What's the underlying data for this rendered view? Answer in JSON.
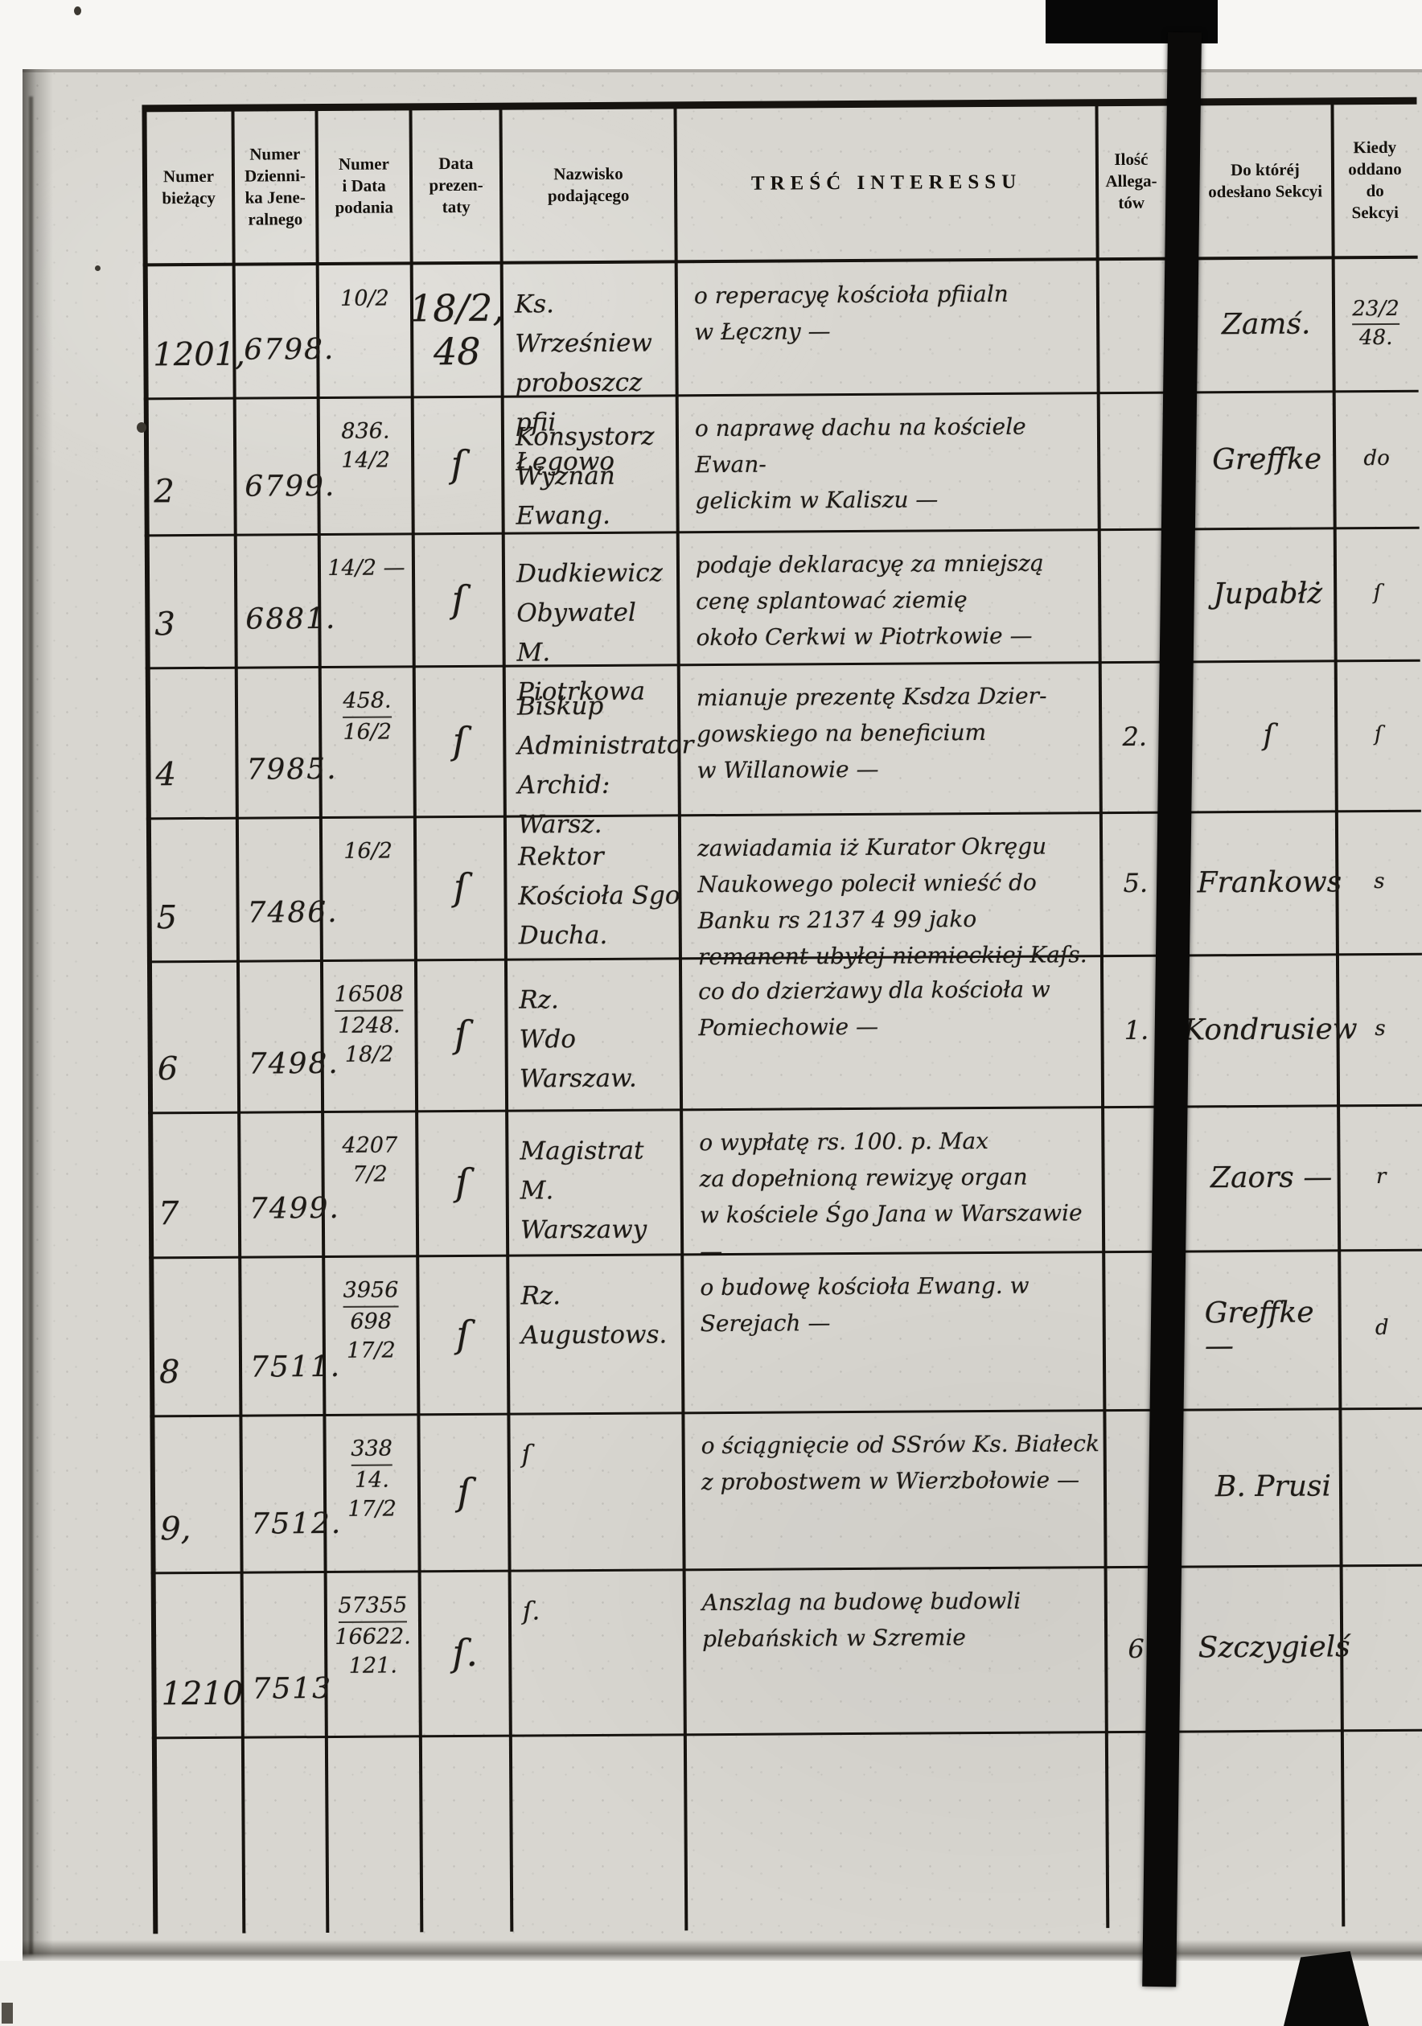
{
  "document": {
    "type": "archival-register-scan",
    "language": "Polish",
    "ink_color": "#1d1a16",
    "paper_color": "#d8d6d0"
  },
  "header": {
    "columns": [
      {
        "id": "num",
        "lines": [
          "Numer",
          "bieżący"
        ]
      },
      {
        "id": "dziennik",
        "lines": [
          "Numer",
          "Dzienni-",
          "ka Jene-",
          "ralnego"
        ]
      },
      {
        "id": "numdata",
        "lines": [
          "Numer",
          "i Data",
          "podania"
        ]
      },
      {
        "id": "prezentata",
        "lines": [
          "Data",
          "prezen-",
          "taty"
        ]
      },
      {
        "id": "nazwisko",
        "lines": [
          "Nazwisko",
          "podającego"
        ]
      },
      {
        "id": "tresc",
        "lines": [
          "TREŚĆ INTERESSU"
        ]
      },
      {
        "id": "ilosc",
        "lines": [
          "Ilość",
          "Allega-",
          "tów"
        ]
      },
      {
        "id": "sekcya",
        "lines": [
          "Do któréj",
          "odesłano Sekcyi"
        ]
      },
      {
        "id": "kiedy",
        "lines": [
          "Kiedy",
          "oddano",
          "do",
          "Sekcyi"
        ]
      }
    ]
  },
  "rows": [
    {
      "num": "1201,",
      "dziennik": "6798.",
      "numdata": [
        "10/2"
      ],
      "prezentata": [
        "18/2,",
        "48"
      ],
      "nazwisko": [
        "Ks. Wrześniew",
        "proboszcz pfii",
        "Łęgowo"
      ],
      "tresc": [
        "o reperacyę kościoła pfiialn",
        "w Łęczny —"
      ],
      "ilosc": "",
      "sekcya": "Zamś.",
      "kiedy": [
        {
          "t": "23/2",
          "u": true
        },
        "48."
      ]
    },
    {
      "num": "2",
      "dziennik": "6799.",
      "numdata": [
        "836.",
        "14/2"
      ],
      "prezentata": [
        "ſ"
      ],
      "nazwisko": [
        "Konsystorz",
        "Wyznań",
        "Ewang."
      ],
      "tresc": [
        "o naprawę dachu na kościele Ewan-",
        "gelickim w Kaliszu —"
      ],
      "ilosc": "",
      "sekcya": "Greffke",
      "kiedy": [
        "do"
      ]
    },
    {
      "num": "3",
      "dziennik": "6881.",
      "numdata": [
        "14/2 —"
      ],
      "prezentata": [
        "ſ"
      ],
      "nazwisko": [
        "Dudkiewicz",
        "Obywatel",
        "M. Piotrkowa"
      ],
      "tresc": [
        "podaje deklaracyę za mniejszą",
        "cenę splantować ziemię",
        "około Cerkwi w Piotrkowie —"
      ],
      "ilosc": "",
      "sekcya": "Jupabłż",
      "kiedy": [
        "ſ"
      ]
    },
    {
      "num": "4",
      "dziennik": "7985.",
      "numdata": [
        {
          "t": "458.",
          "u": true
        },
        "16/2"
      ],
      "prezentata": [
        "ſ"
      ],
      "nazwisko": [
        "Biskup",
        "Administrator",
        "Archid: Warsz."
      ],
      "tresc": [
        "mianuje prezentę Ksdza Dzier-",
        "gowskiego na beneficium",
        "w Willanowie —"
      ],
      "ilosc": "2.",
      "sekcya": "ſ",
      "kiedy": [
        "ſ"
      ]
    },
    {
      "num": "5",
      "dziennik": "7486.",
      "numdata": [
        "16/2"
      ],
      "prezentata": [
        "ſ"
      ],
      "nazwisko": [
        "Rektor",
        "Kościoła Sgo",
        "Ducha."
      ],
      "tresc": [
        "zawiadamia iż Kurator Okręgu",
        "Naukowego polecił wnieść do",
        "Banku rs 2137 4 99 jako",
        "remanent ubyłej niemieckiej Kaſs."
      ],
      "ilosc": "5.",
      "sekcya": "Frankows",
      "kiedy": [
        "s"
      ]
    },
    {
      "num": "6",
      "dziennik": "7498.",
      "numdata": [
        {
          "t": "16508",
          "u": true
        },
        "1248.",
        "18/2"
      ],
      "prezentata": [
        "ſ"
      ],
      "nazwisko": [
        "Rz.",
        "Wdo",
        "Warszaw."
      ],
      "tresc": [
        "co do dzierżawy dla kościoła w",
        "Pomiechowie —"
      ],
      "ilosc": "1.",
      "sekcya": "Kondrusiew",
      "kiedy": [
        "s"
      ]
    },
    {
      "num": "7",
      "dziennik": "7499.",
      "numdata": [
        "4207",
        "7/2"
      ],
      "prezentata": [
        "ſ"
      ],
      "nazwisko": [
        "Magistrat",
        "M. Warszawy"
      ],
      "tresc": [
        "o wypłatę rs. 100. p. Max",
        "za dopełnioną rewizyę organ",
        "w kościele Śgo Jana w Warszawie —"
      ],
      "ilosc": "",
      "sekcya": "Zaors —",
      "kiedy": [
        "r"
      ]
    },
    {
      "num": "8",
      "dziennik": "7511.",
      "numdata": [
        {
          "t": "3956",
          "u": true
        },
        "698",
        "17/2"
      ],
      "prezentata": [
        "ſ"
      ],
      "nazwisko": [
        "Rz.",
        "Augustows."
      ],
      "tresc": [
        "o budowę kościoła Ewang. w",
        "Serejach —"
      ],
      "ilosc": "",
      "sekcya": "Greffke —",
      "kiedy": [
        "d"
      ]
    },
    {
      "num": "9,",
      "dziennik": "7512.",
      "numdata": [
        {
          "t": "338",
          "u": true
        },
        "14.",
        "17/2"
      ],
      "prezentata": [
        "ſ"
      ],
      "nazwisko": [
        "ſ"
      ],
      "tresc": [
        "o ściągnięcie od SSrów Ks. Białeck",
        "z probostwem w Wierzbołowie —"
      ],
      "ilosc": "",
      "sekcya": "B. Prusi",
      "kiedy": []
    },
    {
      "num": "1210",
      "dziennik": "7513",
      "numdata": [
        {
          "t": "57355",
          "u": true
        },
        "16622.",
        "121."
      ],
      "prezentata": [
        "ſ."
      ],
      "nazwisko": [
        "ſ."
      ],
      "tresc": [
        "Anszlag na budowę budowli",
        "plebańskich w Szremie"
      ],
      "ilosc": "6.",
      "sekcya": "Szczygielś",
      "kiedy": []
    }
  ]
}
